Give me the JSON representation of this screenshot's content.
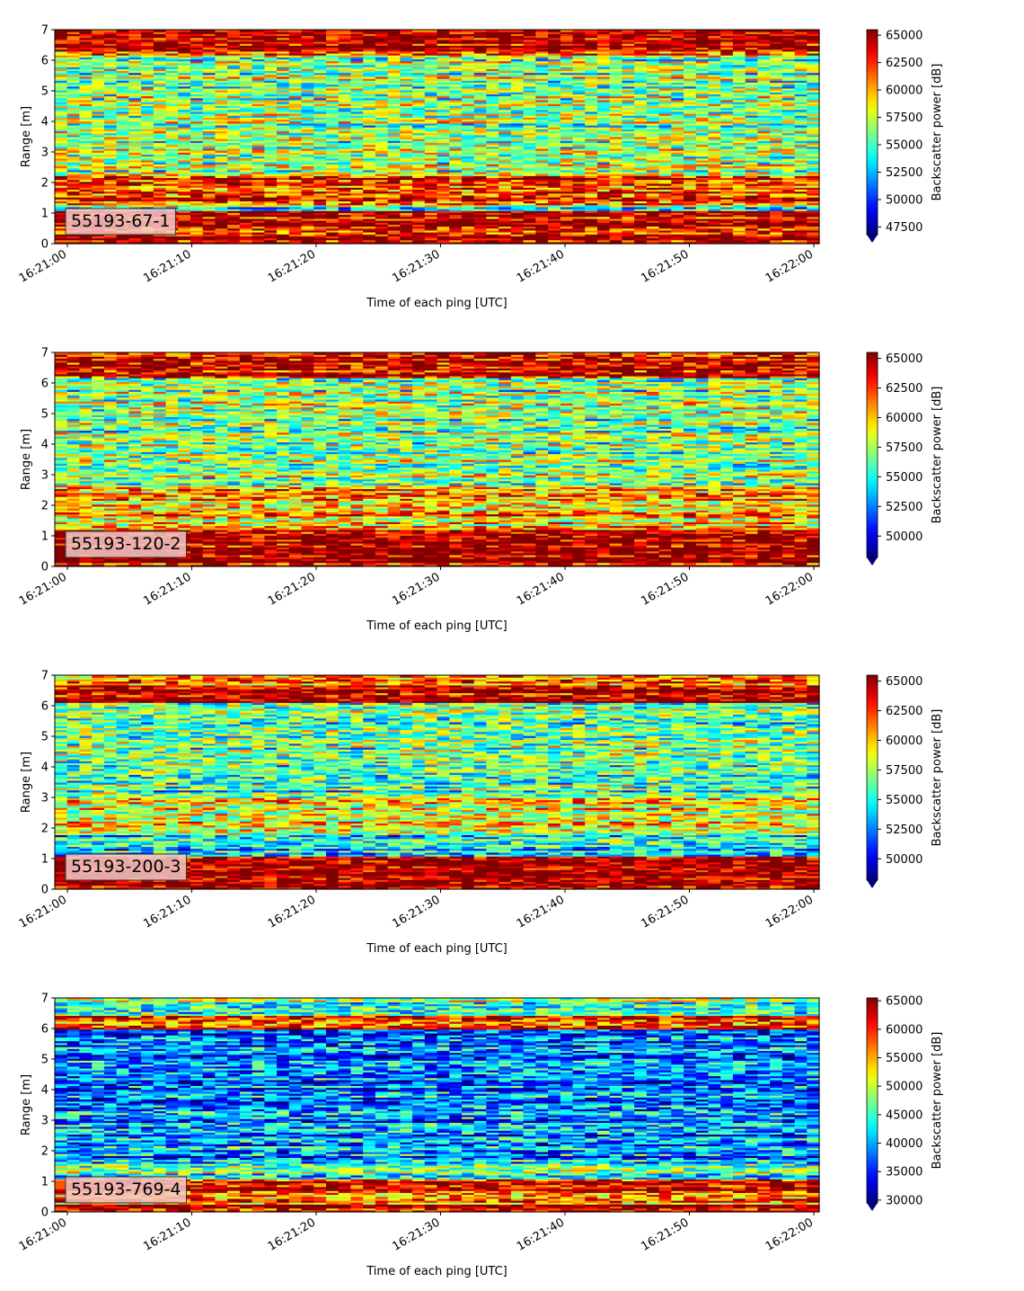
{
  "chart_data": [
    {
      "type": "heatmap",
      "label": "55193-67-1",
      "xlabel": "Time of each ping [UTC]",
      "ylabel": "Range [m]",
      "x_ticks": [
        "16:21:00",
        "16:21:10",
        "16:21:20",
        "16:21:30",
        "16:21:40",
        "16:21:50",
        "16:22:00"
      ],
      "y_ticks": [
        "0",
        "1",
        "2",
        "3",
        "4",
        "5",
        "6",
        "7"
      ],
      "ylim": [
        0,
        7
      ],
      "xlim": [
        "16:21:00",
        "16:22:00"
      ],
      "colorbar_label": "Backscatter power [dB]",
      "colorbar_ticks": [
        "47500",
        "50000",
        "52500",
        "55000",
        "57500",
        "60000",
        "62500",
        "65000"
      ],
      "clim": [
        46800,
        65500
      ],
      "colormap": "jet",
      "bands": [
        {
          "from": 0.0,
          "to": 0.25,
          "value": 65000
        },
        {
          "from": 0.25,
          "to": 1.1,
          "value": 64500
        },
        {
          "from": 1.1,
          "to": 1.3,
          "value": 55000
        },
        {
          "from": 1.3,
          "to": 2.2,
          "value": 62500
        },
        {
          "from": 2.2,
          "to": 6.1,
          "value": 56500
        },
        {
          "from": 6.1,
          "to": 6.3,
          "value": 60000
        },
        {
          "from": 6.3,
          "to": 7.0,
          "value": 65000
        }
      ]
    },
    {
      "type": "heatmap",
      "label": "55193-120-2",
      "xlabel": "Time of each ping [UTC]",
      "ylabel": "Range [m]",
      "x_ticks": [
        "16:21:00",
        "16:21:10",
        "16:21:20",
        "16:21:30",
        "16:21:40",
        "16:21:50",
        "16:22:00"
      ],
      "y_ticks": [
        "0",
        "1",
        "2",
        "3",
        "4",
        "5",
        "6",
        "7"
      ],
      "ylim": [
        0,
        7
      ],
      "xlim": [
        "16:21:00",
        "16:22:00"
      ],
      "colorbar_label": "Backscatter power [dB]",
      "colorbar_ticks": [
        "50000",
        "52500",
        "55000",
        "57500",
        "60000",
        "62500",
        "65000"
      ],
      "clim": [
        48200,
        65500
      ],
      "colormap": "jet",
      "bands": [
        {
          "from": 0.0,
          "to": 0.1,
          "value": 64000
        },
        {
          "from": 0.1,
          "to": 1.2,
          "value": 65000
        },
        {
          "from": 1.2,
          "to": 1.5,
          "value": 60000
        },
        {
          "from": 1.5,
          "to": 2.6,
          "value": 60500
        },
        {
          "from": 2.6,
          "to": 6.2,
          "value": 57000
        },
        {
          "from": 6.2,
          "to": 6.9,
          "value": 64800
        },
        {
          "from": 6.9,
          "to": 7.0,
          "value": 62000
        }
      ]
    },
    {
      "type": "heatmap",
      "label": "55193-200-3",
      "xlabel": "Time of each ping [UTC]",
      "ylabel": "Range [m]",
      "x_ticks": [
        "16:21:00",
        "16:21:10",
        "16:21:20",
        "16:21:30",
        "16:21:40",
        "16:21:50",
        "16:22:00"
      ],
      "y_ticks": [
        "0",
        "1",
        "2",
        "3",
        "4",
        "5",
        "6",
        "7"
      ],
      "ylim": [
        0,
        7
      ],
      "xlim": [
        "16:21:00",
        "16:22:00"
      ],
      "colorbar_label": "Backscatter power [dB]",
      "colorbar_ticks": [
        "50000",
        "52500",
        "55000",
        "57500",
        "60000",
        "62500",
        "65000"
      ],
      "clim": [
        48200,
        65500
      ],
      "colormap": "jet",
      "bands": [
        {
          "from": 0.0,
          "to": 1.1,
          "value": 65000
        },
        {
          "from": 1.1,
          "to": 1.8,
          "value": 54500
        },
        {
          "from": 1.8,
          "to": 3.2,
          "value": 58500
        },
        {
          "from": 3.2,
          "to": 6.1,
          "value": 56500
        },
        {
          "from": 6.1,
          "to": 6.7,
          "value": 64800
        },
        {
          "from": 6.7,
          "to": 7.0,
          "value": 61500
        }
      ]
    },
    {
      "type": "heatmap",
      "label": "55193-769-4",
      "xlabel": "Time of each ping [UTC]",
      "ylabel": "Range [m]",
      "x_ticks": [
        "16:21:00",
        "16:21:10",
        "16:21:20",
        "16:21:30",
        "16:21:40",
        "16:21:50",
        "16:22:00"
      ],
      "y_ticks": [
        "0",
        "1",
        "2",
        "3",
        "4",
        "5",
        "6",
        "7"
      ],
      "ylim": [
        0,
        7
      ],
      "xlim": [
        "16:21:00",
        "16:22:00"
      ],
      "colorbar_label": "Backscatter power [dB]",
      "colorbar_ticks": [
        "30000",
        "35000",
        "40000",
        "45000",
        "50000",
        "55000",
        "60000",
        "65000"
      ],
      "clim": [
        29500,
        65500
      ],
      "colormap": "jet",
      "bands": [
        {
          "from": 0.0,
          "to": 0.25,
          "value": 64000
        },
        {
          "from": 0.25,
          "to": 0.7,
          "value": 58000
        },
        {
          "from": 0.7,
          "to": 1.1,
          "value": 62000
        },
        {
          "from": 1.1,
          "to": 1.6,
          "value": 46000
        },
        {
          "from": 1.6,
          "to": 6.0,
          "value": 38500
        },
        {
          "from": 6.0,
          "to": 6.4,
          "value": 60000
        },
        {
          "from": 6.4,
          "to": 7.0,
          "value": 47000
        }
      ]
    }
  ]
}
